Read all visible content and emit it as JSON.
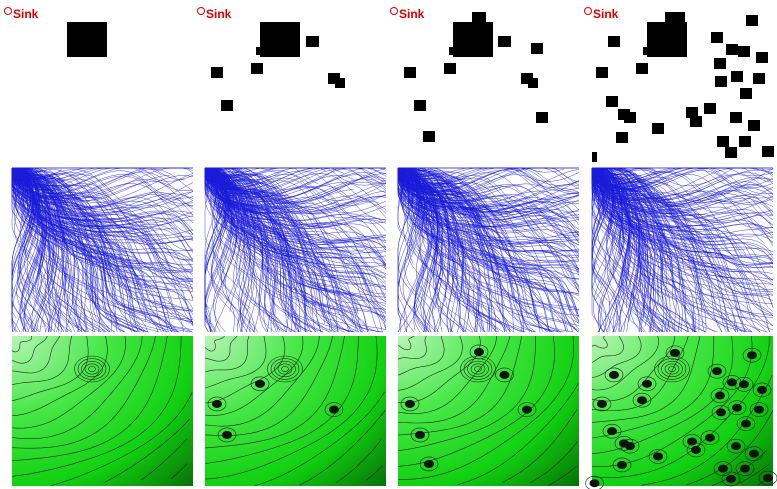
{
  "columns": [
    {
      "sink_label": "Sink"
    },
    {
      "sink_label": "Sink"
    },
    {
      "sink_label": "Sink"
    },
    {
      "sink_label": "Sink"
    }
  ]
}
